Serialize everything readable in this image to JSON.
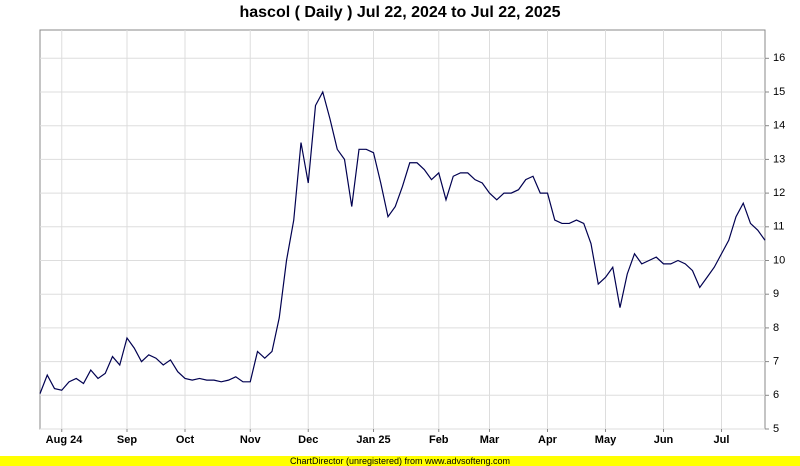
{
  "chart_data": {
    "type": "line",
    "title": "hascol ( Daily ) Jul 22, 2024 to Jul 22, 2025",
    "footer": "ChartDirector (unregistered) from www.advsofteng.com",
    "color": "#000050",
    "grid": true,
    "ylim": [
      5,
      16.84
    ],
    "yticks": [
      5,
      6,
      7,
      8,
      9,
      10,
      11,
      12,
      13,
      14,
      15,
      16
    ],
    "categories": [
      null,
      null,
      null,
      "Aug 24",
      null,
      null,
      null,
      null,
      null,
      null,
      null,
      null,
      "Sep",
      null,
      null,
      null,
      null,
      null,
      null,
      null,
      "Oct",
      null,
      null,
      null,
      null,
      null,
      null,
      null,
      null,
      "Nov",
      null,
      null,
      null,
      null,
      null,
      null,
      null,
      "Dec",
      null,
      null,
      null,
      null,
      null,
      null,
      null,
      null,
      "Jan 25",
      null,
      null,
      null,
      null,
      null,
      null,
      null,
      null,
      "Feb",
      null,
      null,
      null,
      null,
      null,
      null,
      "Mar",
      null,
      null,
      null,
      null,
      null,
      null,
      null,
      "Apr",
      null,
      null,
      null,
      null,
      null,
      null,
      null,
      "May",
      null,
      null,
      null,
      null,
      null,
      null,
      null,
      "Jun",
      null,
      null,
      null,
      null,
      null,
      null,
      null,
      "Jul",
      null,
      null,
      null,
      null,
      null,
      null
    ],
    "values": [
      6.05,
      6.6,
      6.2,
      6.15,
      6.4,
      6.5,
      6.35,
      6.75,
      6.5,
      6.65,
      7.15,
      6.9,
      7.7,
      7.4,
      7.0,
      7.2,
      7.1,
      6.9,
      7.05,
      6.7,
      6.5,
      6.45,
      6.5,
      6.45,
      6.45,
      6.4,
      6.45,
      6.55,
      6.4,
      6.4,
      7.3,
      7.1,
      7.3,
      8.3,
      10.0,
      11.2,
      13.5,
      12.3,
      14.6,
      15.0,
      14.2,
      13.3,
      13.0,
      11.6,
      13.3,
      13.3,
      13.2,
      12.3,
      11.3,
      11.6,
      12.2,
      12.9,
      12.9,
      12.7,
      12.4,
      12.6,
      11.8,
      12.5,
      12.6,
      12.6,
      12.4,
      12.3,
      12.0,
      11.8,
      12.0,
      12.0,
      12.1,
      12.4,
      12.5,
      12.0,
      12.0,
      11.2,
      11.1,
      11.1,
      11.2,
      11.1,
      10.5,
      9.3,
      9.5,
      9.8,
      8.6,
      9.6,
      10.2,
      9.9,
      10.0,
      10.1,
      9.9,
      9.9,
      10.0,
      9.9,
      9.7,
      9.2,
      9.5,
      9.8,
      10.2,
      10.6,
      11.3,
      11.7,
      11.1,
      10.9,
      10.6
    ]
  }
}
